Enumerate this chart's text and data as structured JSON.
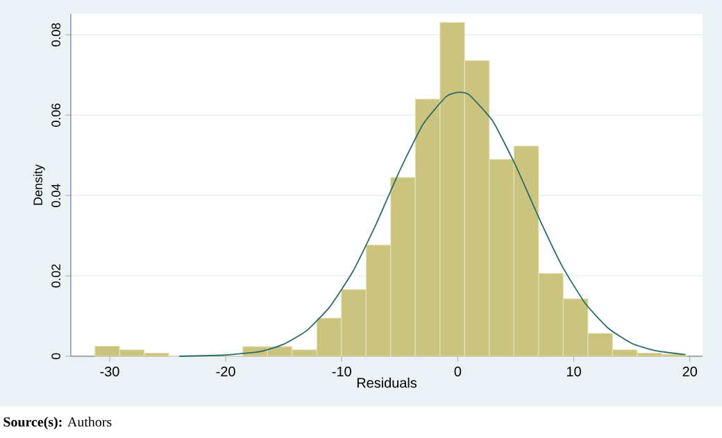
{
  "chart_data": {
    "type": "histogram",
    "xlabel": "Residuals",
    "ylabel": "Density",
    "annotations": [
      "**Source(s):** Authors"
    ],
    "series": [
      {
        "color": "#cbc47f",
        "bins": [
          -31.27,
          -29.15,
          -27.02,
          -24.9,
          -22.78,
          -20.65,
          -18.53,
          -16.4,
          -14.28,
          -12.15,
          -10.03,
          -7.9,
          -5.78,
          -3.66,
          -1.53,
          0.59,
          2.72,
          4.84,
          6.97,
          9.09,
          11.22,
          13.34,
          15.46,
          17.59,
          19.71
        ],
        "values": [
          0.0025,
          0.0016,
          0.0008,
          0,
          0,
          0,
          0.0024,
          0.0024,
          0.0016,
          0.0095,
          0.0166,
          0.0277,
          0.0445,
          0.064,
          0.0831,
          0.0736,
          0.049,
          0.0523,
          0.0206,
          0.0143,
          0.0057,
          0.0016,
          0.0008,
          0.0005
        ]
      },
      {
        "type": "line",
        "color": "#2a6a6a",
        "x": [
          -24,
          -20,
          -17,
          -15,
          -13,
          -11,
          -9,
          -7,
          -5,
          -3,
          -1,
          0.1,
          1,
          3,
          5,
          7,
          9,
          11,
          13,
          15,
          17,
          19.6
        ],
        "values": [
          0,
          0.0003,
          0.0012,
          0.003,
          0.0064,
          0.0124,
          0.0213,
          0.0331,
          0.0462,
          0.0577,
          0.0646,
          0.0657,
          0.065,
          0.0586,
          0.0474,
          0.0344,
          0.0224,
          0.0131,
          0.0069,
          0.0032,
          0.0014,
          0.0004
        ]
      }
    ],
    "xlim": [
      -33.35,
      21.1
    ],
    "ylim": [
      0,
      0.0852
    ],
    "xticks": [
      -30,
      -20,
      -10,
      0,
      10,
      20
    ],
    "yticks": [
      0,
      0.02,
      0.04,
      0.06,
      0.08
    ],
    "grid": "y"
  }
}
